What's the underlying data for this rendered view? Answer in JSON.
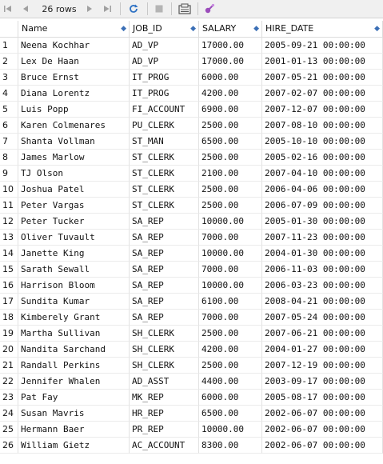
{
  "toolbar": {
    "rows_label": "26 rows",
    "icons": [
      "first-page-icon",
      "previous-page-icon",
      "next-page-icon",
      "last-page-icon",
      "refresh-icon",
      "stop-icon",
      "export-icon",
      "filter-icon"
    ]
  },
  "columns": [
    "Name",
    "JOB_ID",
    "SALARY",
    "HIRE_DATE"
  ],
  "rows": [
    [
      "1",
      "Neena Kochhar",
      "AD_VP",
      "17000.00",
      "2005-09-21 00:00:00"
    ],
    [
      "2",
      "Lex De Haan",
      "AD_VP",
      "17000.00",
      "2001-01-13 00:00:00"
    ],
    [
      "3",
      "Bruce Ernst",
      "IT_PROG",
      "6000.00",
      "2007-05-21 00:00:00"
    ],
    [
      "4",
      "Diana Lorentz",
      "IT_PROG",
      "4200.00",
      "2007-02-07 00:00:00"
    ],
    [
      "5",
      "Luis Popp",
      "FI_ACCOUNT",
      "6900.00",
      "2007-12-07 00:00:00"
    ],
    [
      "6",
      "Karen Colmenares",
      "PU_CLERK",
      "2500.00",
      "2007-08-10 00:00:00"
    ],
    [
      "7",
      "Shanta Vollman",
      "ST_MAN",
      "6500.00",
      "2005-10-10 00:00:00"
    ],
    [
      "8",
      "James Marlow",
      "ST_CLERK",
      "2500.00",
      "2005-02-16 00:00:00"
    ],
    [
      "9",
      "TJ Olson",
      "ST_CLERK",
      "2100.00",
      "2007-04-10 00:00:00"
    ],
    [
      "10",
      "Joshua Patel",
      "ST_CLERK",
      "2500.00",
      "2006-04-06 00:00:00"
    ],
    [
      "11",
      "Peter Vargas",
      "ST_CLERK",
      "2500.00",
      "2006-07-09 00:00:00"
    ],
    [
      "12",
      "Peter Tucker",
      "SA_REP",
      "10000.00",
      "2005-01-30 00:00:00"
    ],
    [
      "13",
      "Oliver Tuvault",
      "SA_REP",
      "7000.00",
      "2007-11-23 00:00:00"
    ],
    [
      "14",
      "Janette King",
      "SA_REP",
      "10000.00",
      "2004-01-30 00:00:00"
    ],
    [
      "15",
      "Sarath Sewall",
      "SA_REP",
      "7000.00",
      "2006-11-03 00:00:00"
    ],
    [
      "16",
      "Harrison Bloom",
      "SA_REP",
      "10000.00",
      "2006-03-23 00:00:00"
    ],
    [
      "17",
      "Sundita Kumar",
      "SA_REP",
      "6100.00",
      "2008-04-21 00:00:00"
    ],
    [
      "18",
      "Kimberely Grant",
      "SA_REP",
      "7000.00",
      "2007-05-24 00:00:00"
    ],
    [
      "19",
      "Martha Sullivan",
      "SH_CLERK",
      "2500.00",
      "2007-06-21 00:00:00"
    ],
    [
      "20",
      "Nandita Sarchand",
      "SH_CLERK",
      "4200.00",
      "2004-01-27 00:00:00"
    ],
    [
      "21",
      "Randall Perkins",
      "SH_CLERK",
      "2500.00",
      "2007-12-19 00:00:00"
    ],
    [
      "22",
      "Jennifer Whalen",
      "AD_ASST",
      "4400.00",
      "2003-09-17 00:00:00"
    ],
    [
      "23",
      "Pat Fay",
      "MK_REP",
      "6000.00",
      "2005-08-17 00:00:00"
    ],
    [
      "24",
      "Susan Mavris",
      "HR_REP",
      "6500.00",
      "2002-06-07 00:00:00"
    ],
    [
      "25",
      "Hermann Baer",
      "PR_REP",
      "10000.00",
      "2002-06-07 00:00:00"
    ],
    [
      "26",
      "William Gietz",
      "AC_ACCOUNT",
      "8300.00",
      "2002-06-07 00:00:00"
    ]
  ]
}
